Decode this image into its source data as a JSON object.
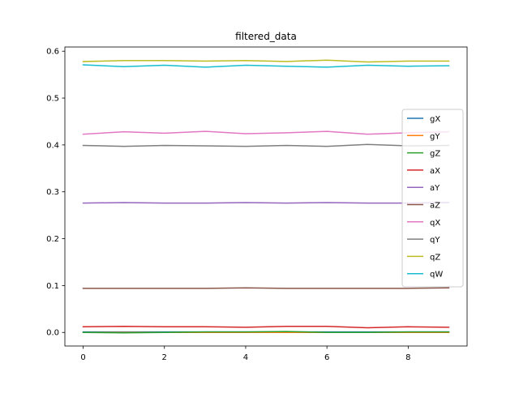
{
  "chart_data": {
    "type": "line",
    "title": "filtered_data",
    "xlabel": "",
    "ylabel": "",
    "xlim": [
      -0.45,
      9.45
    ],
    "ylim": [
      -0.029,
      0.609
    ],
    "xticks": [
      0,
      2,
      4,
      6,
      8
    ],
    "yticks": [
      0.0,
      0.1,
      0.2,
      0.3,
      0.4,
      0.5,
      0.6
    ],
    "xtick_labels": [
      "0",
      "2",
      "4",
      "6",
      "8"
    ],
    "ytick_labels": [
      "0.0",
      "0.1",
      "0.2",
      "0.3",
      "0.4",
      "0.5",
      "0.6"
    ],
    "grid": false,
    "legend_position": "center-right",
    "x": [
      0,
      1,
      2,
      3,
      4,
      5,
      6,
      7,
      8,
      9
    ],
    "series": [
      {
        "name": "gX",
        "color": "#1f77b4",
        "values": [
          0.001,
          0.001,
          0.001,
          0.001,
          0.001,
          0.001,
          0.001,
          0.001,
          0.001,
          0.001
        ]
      },
      {
        "name": "gY",
        "color": "#ff7f0e",
        "values": [
          0.0,
          0.0,
          0.0,
          0.0,
          0.0,
          0.0,
          0.0,
          0.0,
          0.0,
          0.0
        ]
      },
      {
        "name": "gZ",
        "color": "#2ca02c",
        "values": [
          0.0,
          -0.001,
          0.0,
          0.001,
          0.001,
          0.002,
          0.0,
          0.0,
          0.001,
          0.001
        ]
      },
      {
        "name": "aX",
        "color": "#d62728",
        "values": [
          0.012,
          0.013,
          0.012,
          0.012,
          0.011,
          0.013,
          0.013,
          0.01,
          0.012,
          0.011
        ]
      },
      {
        "name": "aY",
        "color": "#9467bd",
        "values": [
          0.276,
          0.277,
          0.276,
          0.276,
          0.277,
          0.276,
          0.277,
          0.276,
          0.276,
          0.277
        ]
      },
      {
        "name": "aZ",
        "color": "#8c564b",
        "values": [
          0.094,
          0.094,
          0.094,
          0.094,
          0.095,
          0.094,
          0.094,
          0.094,
          0.094,
          0.095
        ]
      },
      {
        "name": "qX",
        "color": "#e377c2",
        "values": [
          0.423,
          0.428,
          0.425,
          0.429,
          0.424,
          0.426,
          0.429,
          0.423,
          0.426,
          0.428
        ]
      },
      {
        "name": "qY",
        "color": "#7f7f7f",
        "values": [
          0.399,
          0.397,
          0.399,
          0.398,
          0.397,
          0.399,
          0.397,
          0.401,
          0.398,
          0.399
        ]
      },
      {
        "name": "qZ",
        "color": "#bcbd22",
        "values": [
          0.578,
          0.58,
          0.58,
          0.579,
          0.58,
          0.578,
          0.581,
          0.577,
          0.579,
          0.579
        ]
      },
      {
        "name": "qW",
        "color": "#17becf",
        "values": [
          0.571,
          0.567,
          0.57,
          0.566,
          0.57,
          0.568,
          0.566,
          0.57,
          0.568,
          0.569
        ]
      }
    ]
  }
}
